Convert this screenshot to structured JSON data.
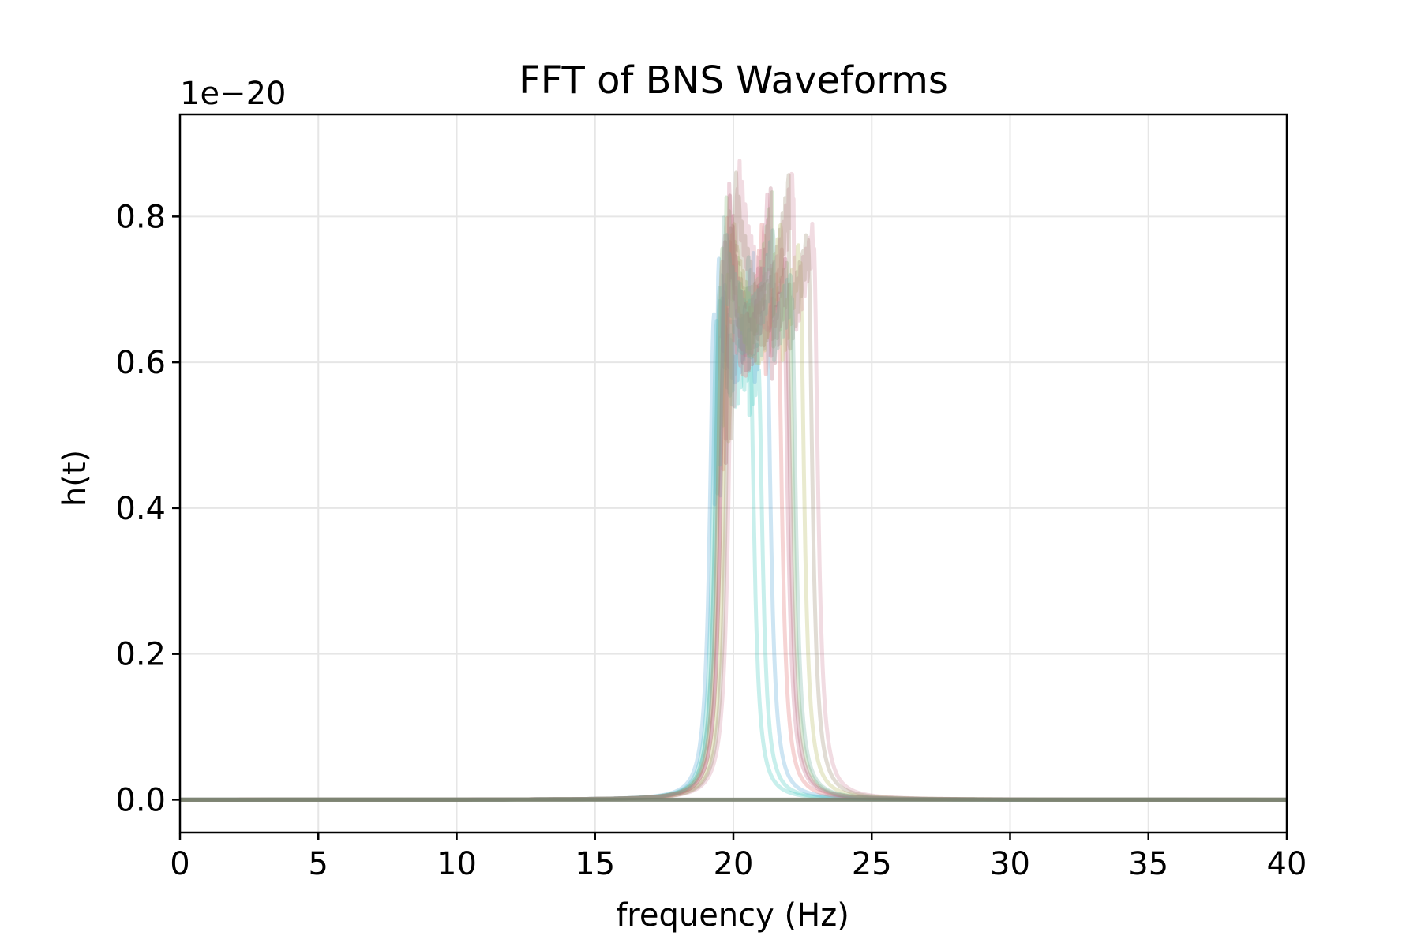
{
  "chart_data": {
    "type": "line",
    "title": "FFT of BNS Waveforms",
    "xlabel": "frequency (Hz)",
    "ylabel": "h(t)",
    "y_offset_label": "1e−20",
    "xlim": [
      0,
      40
    ],
    "ylim": [
      -0.045,
      0.94
    ],
    "x_ticks": [
      0,
      5,
      10,
      15,
      20,
      25,
      30,
      35,
      40
    ],
    "x_tick_labels": [
      "0",
      "5",
      "10",
      "15",
      "20",
      "25",
      "30",
      "35",
      "40"
    ],
    "y_ticks": [
      0.0,
      0.2,
      0.4,
      0.6,
      0.8
    ],
    "y_tick_labels": [
      "0.0",
      "0.2",
      "0.4",
      "0.6",
      "0.8"
    ],
    "grid": true,
    "legend": "none",
    "series_opacity": 0.3,
    "baseline": {
      "value": 0.0,
      "color": "#7a8270"
    },
    "series": [
      {
        "color": "#48c9c0",
        "f_on": 19.4,
        "f_off": 20.6,
        "peak": 0.73,
        "dip": 0.58,
        "tail": 0.62
      },
      {
        "color": "#48c9c0",
        "f_on": 19.5,
        "f_off": 20.9,
        "peak": 0.76,
        "dip": 0.55,
        "tail": 0.6
      },
      {
        "color": "#5aa8d8",
        "f_on": 19.3,
        "f_off": 21.2,
        "peak": 0.74,
        "dip": 0.6,
        "tail": 0.66
      },
      {
        "color": "#e07070",
        "f_on": 19.6,
        "f_off": 21.6,
        "peak": 0.82,
        "dip": 0.6,
        "tail": 0.7
      },
      {
        "color": "#c76f8a",
        "f_on": 19.7,
        "f_off": 21.8,
        "peak": 0.86,
        "dip": 0.62,
        "tail": 0.74
      },
      {
        "color": "#88b878",
        "f_on": 19.6,
        "f_off": 22.0,
        "peak": 0.84,
        "dip": 0.64,
        "tail": 0.72
      },
      {
        "color": "#b5b860",
        "f_on": 19.8,
        "f_off": 22.4,
        "peak": 0.8,
        "dip": 0.62,
        "tail": 0.75
      },
      {
        "color": "#d18aa0",
        "f_on": 20.0,
        "f_off": 22.9,
        "peak": 0.89,
        "dip": 0.66,
        "tail": 0.77
      },
      {
        "color": "#9a8a70",
        "f_on": 19.9,
        "f_off": 22.7,
        "peak": 0.87,
        "dip": 0.64,
        "tail": 0.76
      },
      {
        "color": "#b06878",
        "f_on": 19.7,
        "f_off": 21.9,
        "peak": 0.85,
        "dip": 0.6,
        "tail": 0.72
      },
      {
        "color": "#6fb0a0",
        "f_on": 19.5,
        "f_off": 22.1,
        "peak": 0.78,
        "dip": 0.63,
        "tail": 0.7
      }
    ]
  }
}
